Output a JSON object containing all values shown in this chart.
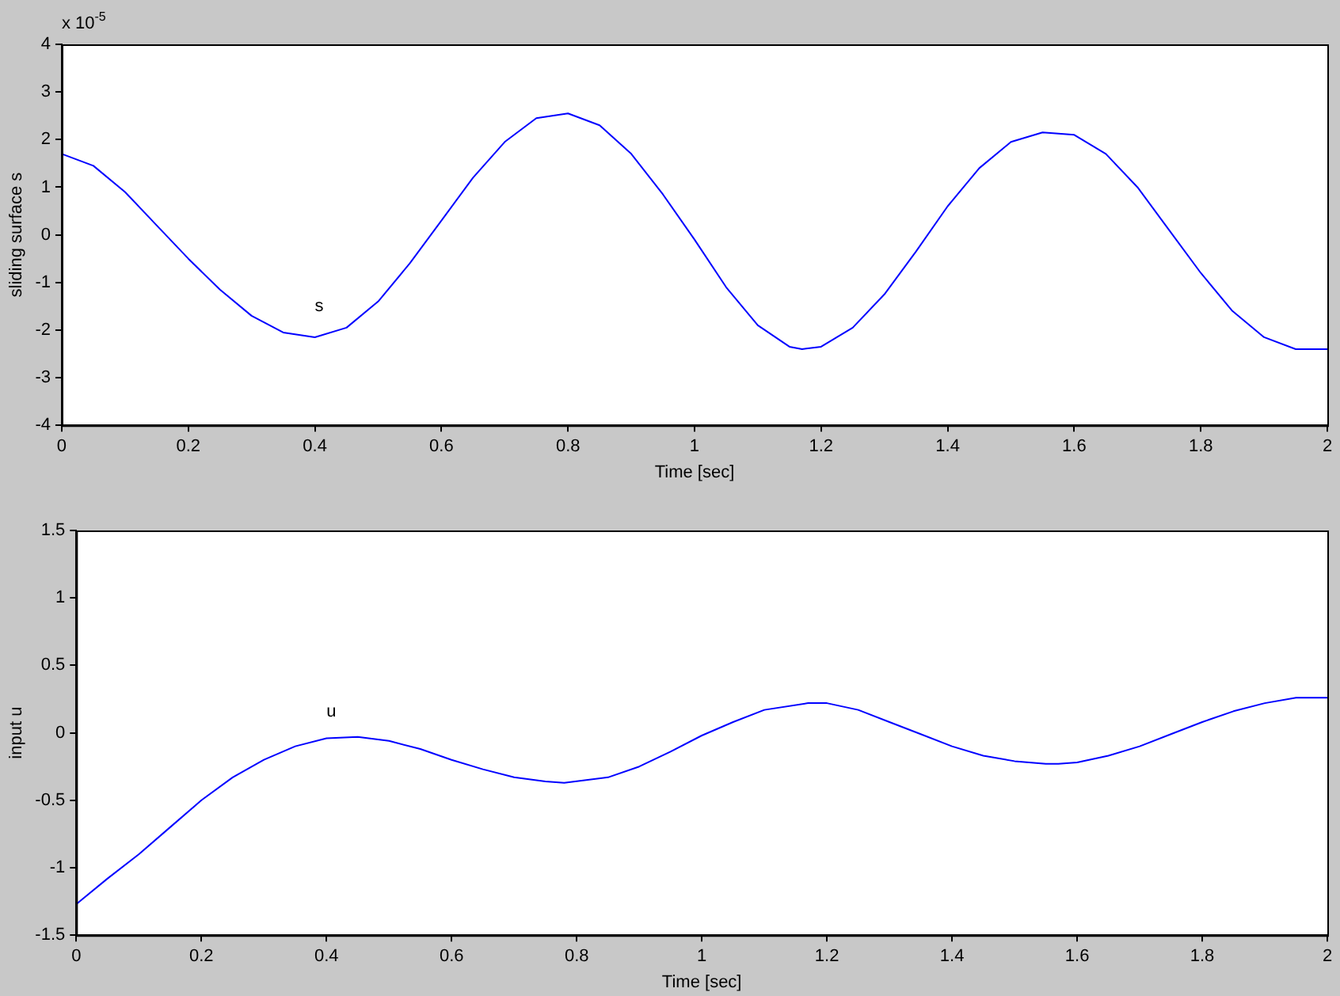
{
  "chart_data": [
    {
      "type": "line",
      "xlabel": "Time [sec]",
      "ylabel": "sliding surface s",
      "x": [
        0,
        0.05,
        0.1,
        0.15,
        0.2,
        0.25,
        0.3,
        0.35,
        0.4,
        0.45,
        0.5,
        0.55,
        0.6,
        0.65,
        0.7,
        0.75,
        0.8,
        0.85,
        0.9,
        0.95,
        1.0,
        1.05,
        1.1,
        1.15,
        1.17,
        1.2,
        1.25,
        1.3,
        1.35,
        1.4,
        1.45,
        1.5,
        1.55,
        1.6,
        1.65,
        1.7,
        1.75,
        1.8,
        1.85,
        1.9,
        1.95,
        2.0
      ],
      "series": [
        {
          "color": "#0000ff",
          "values": [
            1.7,
            1.45,
            0.9,
            0.2,
            -0.5,
            -1.15,
            -1.7,
            -2.05,
            -2.15,
            -1.95,
            -1.4,
            -0.6,
            0.3,
            1.2,
            1.95,
            2.45,
            2.55,
            2.3,
            1.7,
            0.85,
            -0.1,
            -1.1,
            -1.9,
            -2.35,
            -2.4,
            -2.35,
            -1.95,
            -1.25,
            -0.35,
            0.6,
            1.4,
            1.95,
            2.15,
            2.1,
            1.7,
            1.0,
            0.1,
            -0.8,
            -1.6,
            -2.15,
            -2.4,
            -2.4
          ]
        }
      ],
      "xlim": [
        0,
        2
      ],
      "xticks": [
        0,
        0.2,
        0.4,
        0.6,
        0.8,
        1,
        1.2,
        1.4,
        1.6,
        1.8,
        2
      ],
      "ylim": [
        -4,
        4
      ],
      "yticks": [
        -4,
        -3,
        -2,
        -1,
        0,
        1,
        2,
        3,
        4
      ],
      "annotations": [
        "x 10$^{-5}$",
        "s"
      ],
      "grid": false,
      "legend": false,
      "marker": "none",
      "line_style": "solid"
    },
    {
      "type": "line",
      "xlabel": "Time [sec]",
      "ylabel": "input u",
      "x": [
        0,
        0.05,
        0.1,
        0.15,
        0.2,
        0.25,
        0.3,
        0.35,
        0.4,
        0.45,
        0.5,
        0.55,
        0.6,
        0.65,
        0.7,
        0.75,
        0.78,
        0.85,
        0.9,
        0.95,
        1.0,
        1.05,
        1.1,
        1.17,
        1.2,
        1.25,
        1.3,
        1.35,
        1.4,
        1.45,
        1.5,
        1.55,
        1.57,
        1.6,
        1.65,
        1.7,
        1.75,
        1.8,
        1.85,
        1.9,
        1.95,
        2.0
      ],
      "series": [
        {
          "color": "#0000ff",
          "values": [
            -1.27,
            -1.08,
            -0.9,
            -0.7,
            -0.5,
            -0.33,
            -0.2,
            -0.1,
            -0.04,
            -0.03,
            -0.06,
            -0.12,
            -0.2,
            -0.27,
            -0.33,
            -0.36,
            -0.37,
            -0.33,
            -0.25,
            -0.14,
            -0.02,
            0.08,
            0.17,
            0.22,
            0.22,
            0.17,
            0.08,
            -0.01,
            -0.1,
            -0.17,
            -0.21,
            -0.23,
            -0.23,
            -0.22,
            -0.17,
            -0.1,
            -0.01,
            0.08,
            0.16,
            0.22,
            0.26,
            0.26
          ]
        }
      ],
      "xlim": [
        0,
        2
      ],
      "xticks": [
        0,
        0.2,
        0.4,
        0.6,
        0.8,
        1,
        1.2,
        1.4,
        1.6,
        1.8,
        2
      ],
      "ylim": [
        -1.5,
        1.5
      ],
      "yticks": [
        -1.5,
        -1,
        -0.5,
        0,
        0.5,
        1,
        1.5
      ],
      "annotations": [
        "u"
      ],
      "grid": false,
      "legend": false,
      "marker": "none",
      "line_style": "solid"
    }
  ]
}
